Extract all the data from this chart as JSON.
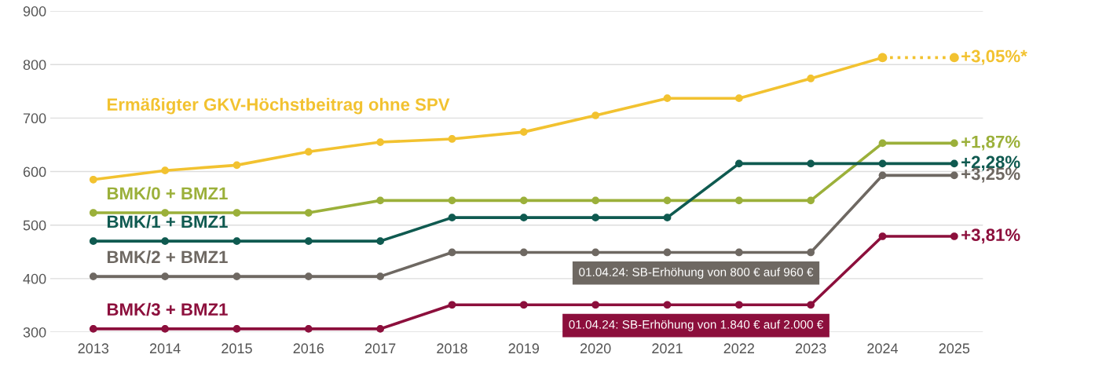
{
  "chart_data": {
    "type": "line",
    "categories": [
      "2013",
      "2014",
      "2015",
      "2016",
      "2017",
      "2018",
      "2019",
      "2020",
      "2021",
      "2022",
      "2023",
      "2024",
      "2025"
    ],
    "series": [
      {
        "name": "Ermäßigter GKV-Höchstbeitrag ohne SPV",
        "color": "#f2c230",
        "values": [
          585,
          602,
          612,
          637,
          655,
          661,
          674,
          705,
          737,
          737,
          774,
          813,
          null
        ]
      },
      {
        "color": "#f2c230",
        "line_style": "dotted",
        "values": [
          null,
          null,
          null,
          null,
          null,
          null,
          null,
          null,
          null,
          null,
          null,
          813,
          813
        ]
      },
      {
        "name": "BMK/0 + BMZ1",
        "color": "#9bb03a",
        "values": [
          523,
          523,
          523,
          523,
          546,
          546,
          546,
          546,
          546,
          546,
          546,
          653,
          653
        ]
      },
      {
        "name": "BMK/1 + BMZ1",
        "color": "#0f5a50",
        "values": [
          470,
          470,
          470,
          470,
          470,
          514,
          514,
          514,
          514,
          615,
          615,
          615,
          615
        ]
      },
      {
        "name": "BMK/2 + BMZ1",
        "color": "#6e6862",
        "values": [
          404,
          404,
          404,
          404,
          404,
          449,
          449,
          449,
          449,
          449,
          449,
          593,
          593
        ]
      },
      {
        "name": "BMK/3 + BMZ1",
        "color": "#8c0f3c",
        "values": [
          306,
          306,
          306,
          306,
          306,
          351,
          351,
          351,
          351,
          351,
          351,
          479,
          479
        ]
      }
    ],
    "ylim": [
      300,
      900
    ],
    "yticks": [
      300,
      400,
      500,
      600,
      700,
      800,
      900
    ],
    "grid": "y",
    "legend": false,
    "marker": "circle",
    "line_style": "solid",
    "annotations": [
      {
        "text": "+3,05%*",
        "x": "2025",
        "y": 813
      },
      {
        "text": "+1,87%",
        "x": "2025",
        "y": 653
      },
      {
        "text": "+2,28%",
        "x": "2025",
        "y": 615
      },
      {
        "text": "+3,25%",
        "x": "2025",
        "y": 593
      },
      {
        "text": "+3,81%",
        "x": "2025",
        "y": 479
      },
      "01.04.24: SB-Erhöhung von 800 € auf 960 €",
      "01.04.24: SB-Erhöhung von 1.840 € auf 2.000 €"
    ]
  }
}
